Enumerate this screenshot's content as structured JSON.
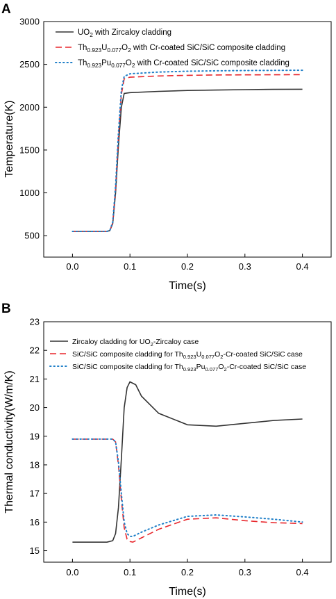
{
  "chart_data": [
    {
      "panel_label": "A",
      "type": "line",
      "xlabel": "Time(s)",
      "ylabel": "Temperature(K)",
      "xlim": [
        -0.05,
        0.45
      ],
      "ylim": [
        250,
        3000
      ],
      "xticks": [
        "0.0",
        "0.1",
        "0.2",
        "0.3",
        "0.4"
      ],
      "xtick_values": [
        0.0,
        0.1,
        0.2,
        0.3,
        0.4
      ],
      "yticks": [
        "500",
        "1000",
        "1500",
        "2000",
        "2500",
        "3000"
      ],
      "ytick_values": [
        500,
        1000,
        1500,
        2000,
        2500,
        3000
      ],
      "legend_position": "top-left",
      "series": [
        {
          "name": "UO2 with Zircaloy cladding",
          "legend": [
            {
              "t": "UO"
            },
            {
              "t": "2",
              "sub": true
            },
            {
              "t": " with Zircaloy cladding"
            }
          ],
          "color": "#333333",
          "style": "solid",
          "x": [
            0.0,
            0.06,
            0.065,
            0.07,
            0.075,
            0.08,
            0.085,
            0.09,
            0.1,
            0.15,
            0.2,
            0.25,
            0.3,
            0.35,
            0.4
          ],
          "y": [
            550,
            550,
            560,
            640,
            1000,
            1550,
            2000,
            2160,
            2170,
            2185,
            2195,
            2200,
            2205,
            2208,
            2210
          ]
        },
        {
          "name": "Th0.923U0.077O2 with Cr-coated SiC/SiC composite cladding",
          "legend": [
            {
              "t": "Th"
            },
            {
              "t": "0.923",
              "sub": true
            },
            {
              "t": "U"
            },
            {
              "t": "0.077",
              "sub": true
            },
            {
              "t": "O"
            },
            {
              "t": "2",
              "sub": true
            },
            {
              "t": " with Cr-coated SiC/SiC composite cladding"
            }
          ],
          "color": "#e8262b",
          "style": "dashed",
          "x": [
            0.0,
            0.06,
            0.065,
            0.07,
            0.075,
            0.08,
            0.085,
            0.09,
            0.1,
            0.15,
            0.2,
            0.25,
            0.3,
            0.35,
            0.4
          ],
          "y": [
            550,
            550,
            560,
            650,
            1050,
            1650,
            2150,
            2330,
            2350,
            2365,
            2372,
            2376,
            2378,
            2379,
            2380
          ]
        },
        {
          "name": "Th0.923Pu0.077O2 with Cr-coated SiC/SiC composite cladding",
          "legend": [
            {
              "t": "Th"
            },
            {
              "t": "0.923",
              "sub": true
            },
            {
              "t": "Pu"
            },
            {
              "t": "0.077",
              "sub": true
            },
            {
              "t": "O"
            },
            {
              "t": "2",
              "sub": true
            },
            {
              "t": " with Cr-coated SiC/SiC composite cladding"
            }
          ],
          "color": "#1f7fc8",
          "style": "dotted",
          "x": [
            0.0,
            0.06,
            0.065,
            0.07,
            0.075,
            0.08,
            0.085,
            0.09,
            0.1,
            0.15,
            0.2,
            0.25,
            0.3,
            0.35,
            0.4
          ],
          "y": [
            550,
            550,
            560,
            660,
            1080,
            1700,
            2200,
            2360,
            2390,
            2410,
            2420,
            2425,
            2428,
            2430,
            2431
          ]
        }
      ]
    },
    {
      "panel_label": "B",
      "type": "line",
      "xlabel": "Time(s)",
      "ylabel": "Thermal conductivity(W/m/K)",
      "xlim": [
        -0.05,
        0.45
      ],
      "ylim": [
        14.6,
        23
      ],
      "xticks": [
        "0.0",
        "0.1",
        "0.2",
        "0.3",
        "0.4"
      ],
      "xtick_values": [
        0.0,
        0.1,
        0.2,
        0.3,
        0.4
      ],
      "yticks": [
        "15",
        "16",
        "17",
        "18",
        "19",
        "20",
        "21",
        "22",
        "23"
      ],
      "ytick_values": [
        15,
        16,
        17,
        18,
        19,
        20,
        21,
        22,
        23
      ],
      "legend_position": "top-left",
      "series": [
        {
          "name": "Zircaloy cladding for UO2-Zircaloy case",
          "legend": [
            {
              "t": "Zircaloy cladding for UO"
            },
            {
              "t": "2",
              "sub": true
            },
            {
              "t": "-Zircaloy case"
            }
          ],
          "color": "#333333",
          "style": "solid",
          "x": [
            0.0,
            0.06,
            0.07,
            0.075,
            0.08,
            0.085,
            0.09,
            0.095,
            0.1,
            0.11,
            0.12,
            0.15,
            0.2,
            0.25,
            0.3,
            0.35,
            0.4
          ],
          "y": [
            15.3,
            15.3,
            15.35,
            15.6,
            16.5,
            18.2,
            20.0,
            20.7,
            20.9,
            20.8,
            20.4,
            19.8,
            19.4,
            19.35,
            19.45,
            19.55,
            19.6
          ]
        },
        {
          "name": "SiC/SiC composite cladding for Th0.923U0.077O2-Cr-coated SiC/SiC case",
          "legend": [
            {
              "t": "SiC/SiC composite cladding for Th"
            },
            {
              "t": "0.923",
              "sub": true
            },
            {
              "t": "U"
            },
            {
              "t": "0.077",
              "sub": true
            },
            {
              "t": "O"
            },
            {
              "t": "2",
              "sub": true
            },
            {
              "t": "-Cr-coated SiC/SiC case"
            }
          ],
          "color": "#e8262b",
          "style": "dashed",
          "x": [
            0.0,
            0.07,
            0.075,
            0.08,
            0.085,
            0.09,
            0.095,
            0.1,
            0.105,
            0.11,
            0.12,
            0.15,
            0.2,
            0.25,
            0.3,
            0.35,
            0.4
          ],
          "y": [
            18.9,
            18.9,
            18.8,
            18.0,
            16.8,
            15.8,
            15.4,
            15.32,
            15.3,
            15.35,
            15.45,
            15.75,
            16.1,
            16.15,
            16.05,
            15.98,
            15.95
          ]
        },
        {
          "name": "SiC/SiC composite cladding for Th0.923Pu0.077O2-Cr-coated SiC/SiC case",
          "legend": [
            {
              "t": "SiC/SiC composite cladding for Th"
            },
            {
              "t": "0.923",
              "sub": true
            },
            {
              "t": "Pu"
            },
            {
              "t": "0.077",
              "sub": true
            },
            {
              "t": "O"
            },
            {
              "t": "2",
              "sub": true
            },
            {
              "t": "-Cr-coated SiC/SiC case"
            }
          ],
          "color": "#1f7fc8",
          "style": "dotted",
          "x": [
            0.0,
            0.07,
            0.075,
            0.08,
            0.085,
            0.09,
            0.095,
            0.1,
            0.105,
            0.11,
            0.12,
            0.15,
            0.2,
            0.25,
            0.3,
            0.35,
            0.4
          ],
          "y": [
            18.9,
            18.9,
            18.8,
            18.1,
            17.0,
            16.0,
            15.6,
            15.5,
            15.5,
            15.55,
            15.65,
            15.9,
            16.2,
            16.25,
            16.18,
            16.1,
            16.0
          ]
        }
      ]
    }
  ]
}
